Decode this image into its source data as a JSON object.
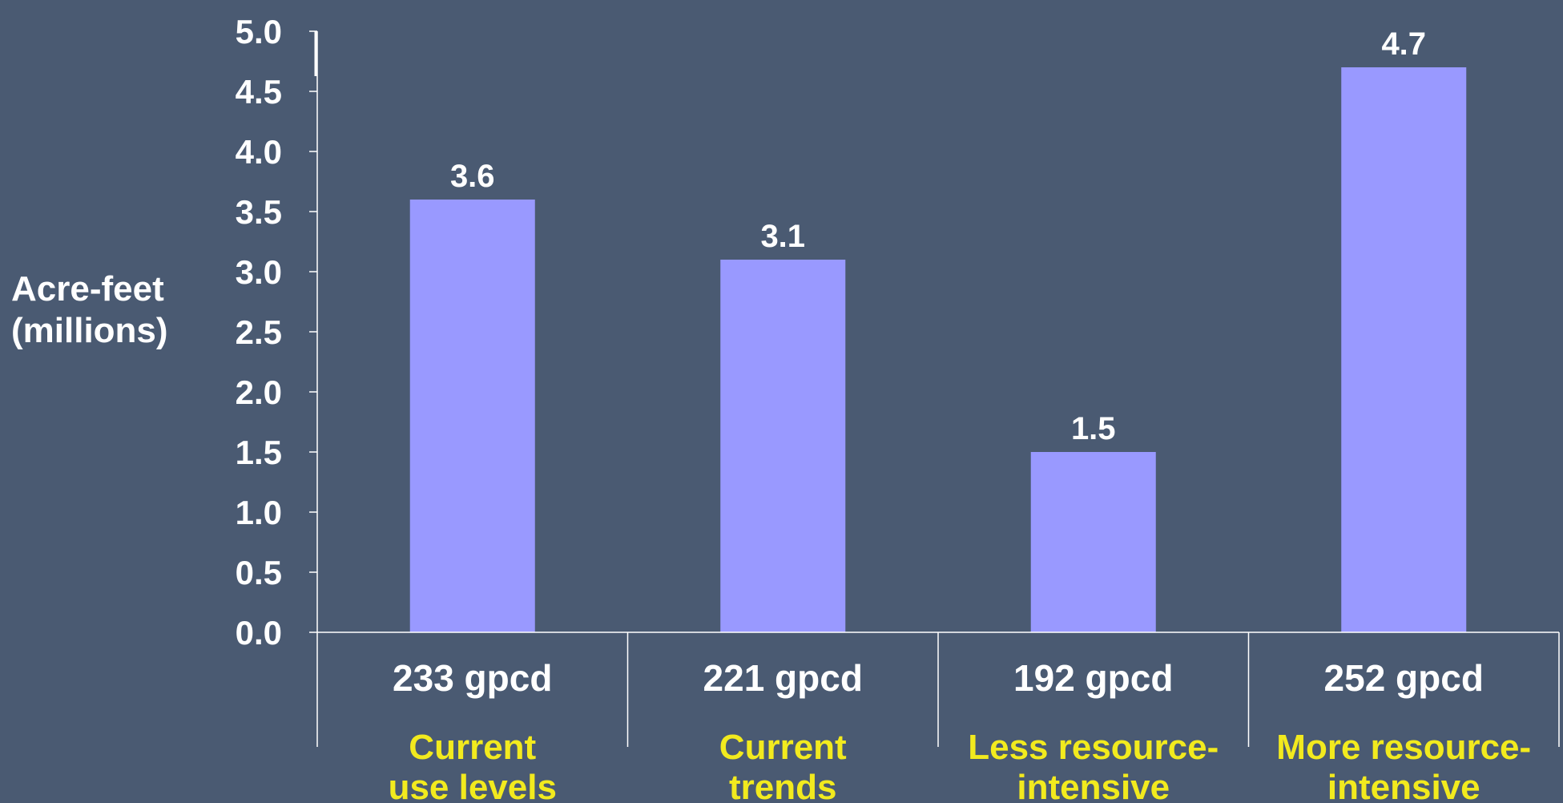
{
  "colors": {
    "background": "#4a5a72",
    "bar": "#9999ff",
    "text": "#ffffff",
    "scenario_text": "#f2ea1e"
  },
  "chart_data": {
    "type": "bar",
    "title": "",
    "xlabel": "",
    "ylabel_lines": [
      "Acre-feet",
      "(millions)"
    ],
    "ylim": [
      0,
      5.0
    ],
    "yticks": [
      "0.0",
      "0.5",
      "1.0",
      "1.5",
      "2.0",
      "2.5",
      "3.0",
      "3.5",
      "4.0",
      "4.5",
      "5.0"
    ],
    "categories": [
      {
        "gpcd": "233 gpcd",
        "scenario_lines": [
          "Current",
          "use levels"
        ]
      },
      {
        "gpcd": "221 gpcd",
        "scenario_lines": [
          "Current",
          "trends"
        ]
      },
      {
        "gpcd": "192 gpcd",
        "scenario_lines": [
          "Less resource-",
          "intensive"
        ]
      },
      {
        "gpcd": "252 gpcd",
        "scenario_lines": [
          "More resource-",
          "intensive"
        ]
      }
    ],
    "values": [
      3.6,
      3.1,
      1.5,
      4.7
    ],
    "value_labels": [
      "3.6",
      "3.1",
      "1.5",
      "4.7"
    ],
    "grid": false,
    "legend": "none"
  }
}
